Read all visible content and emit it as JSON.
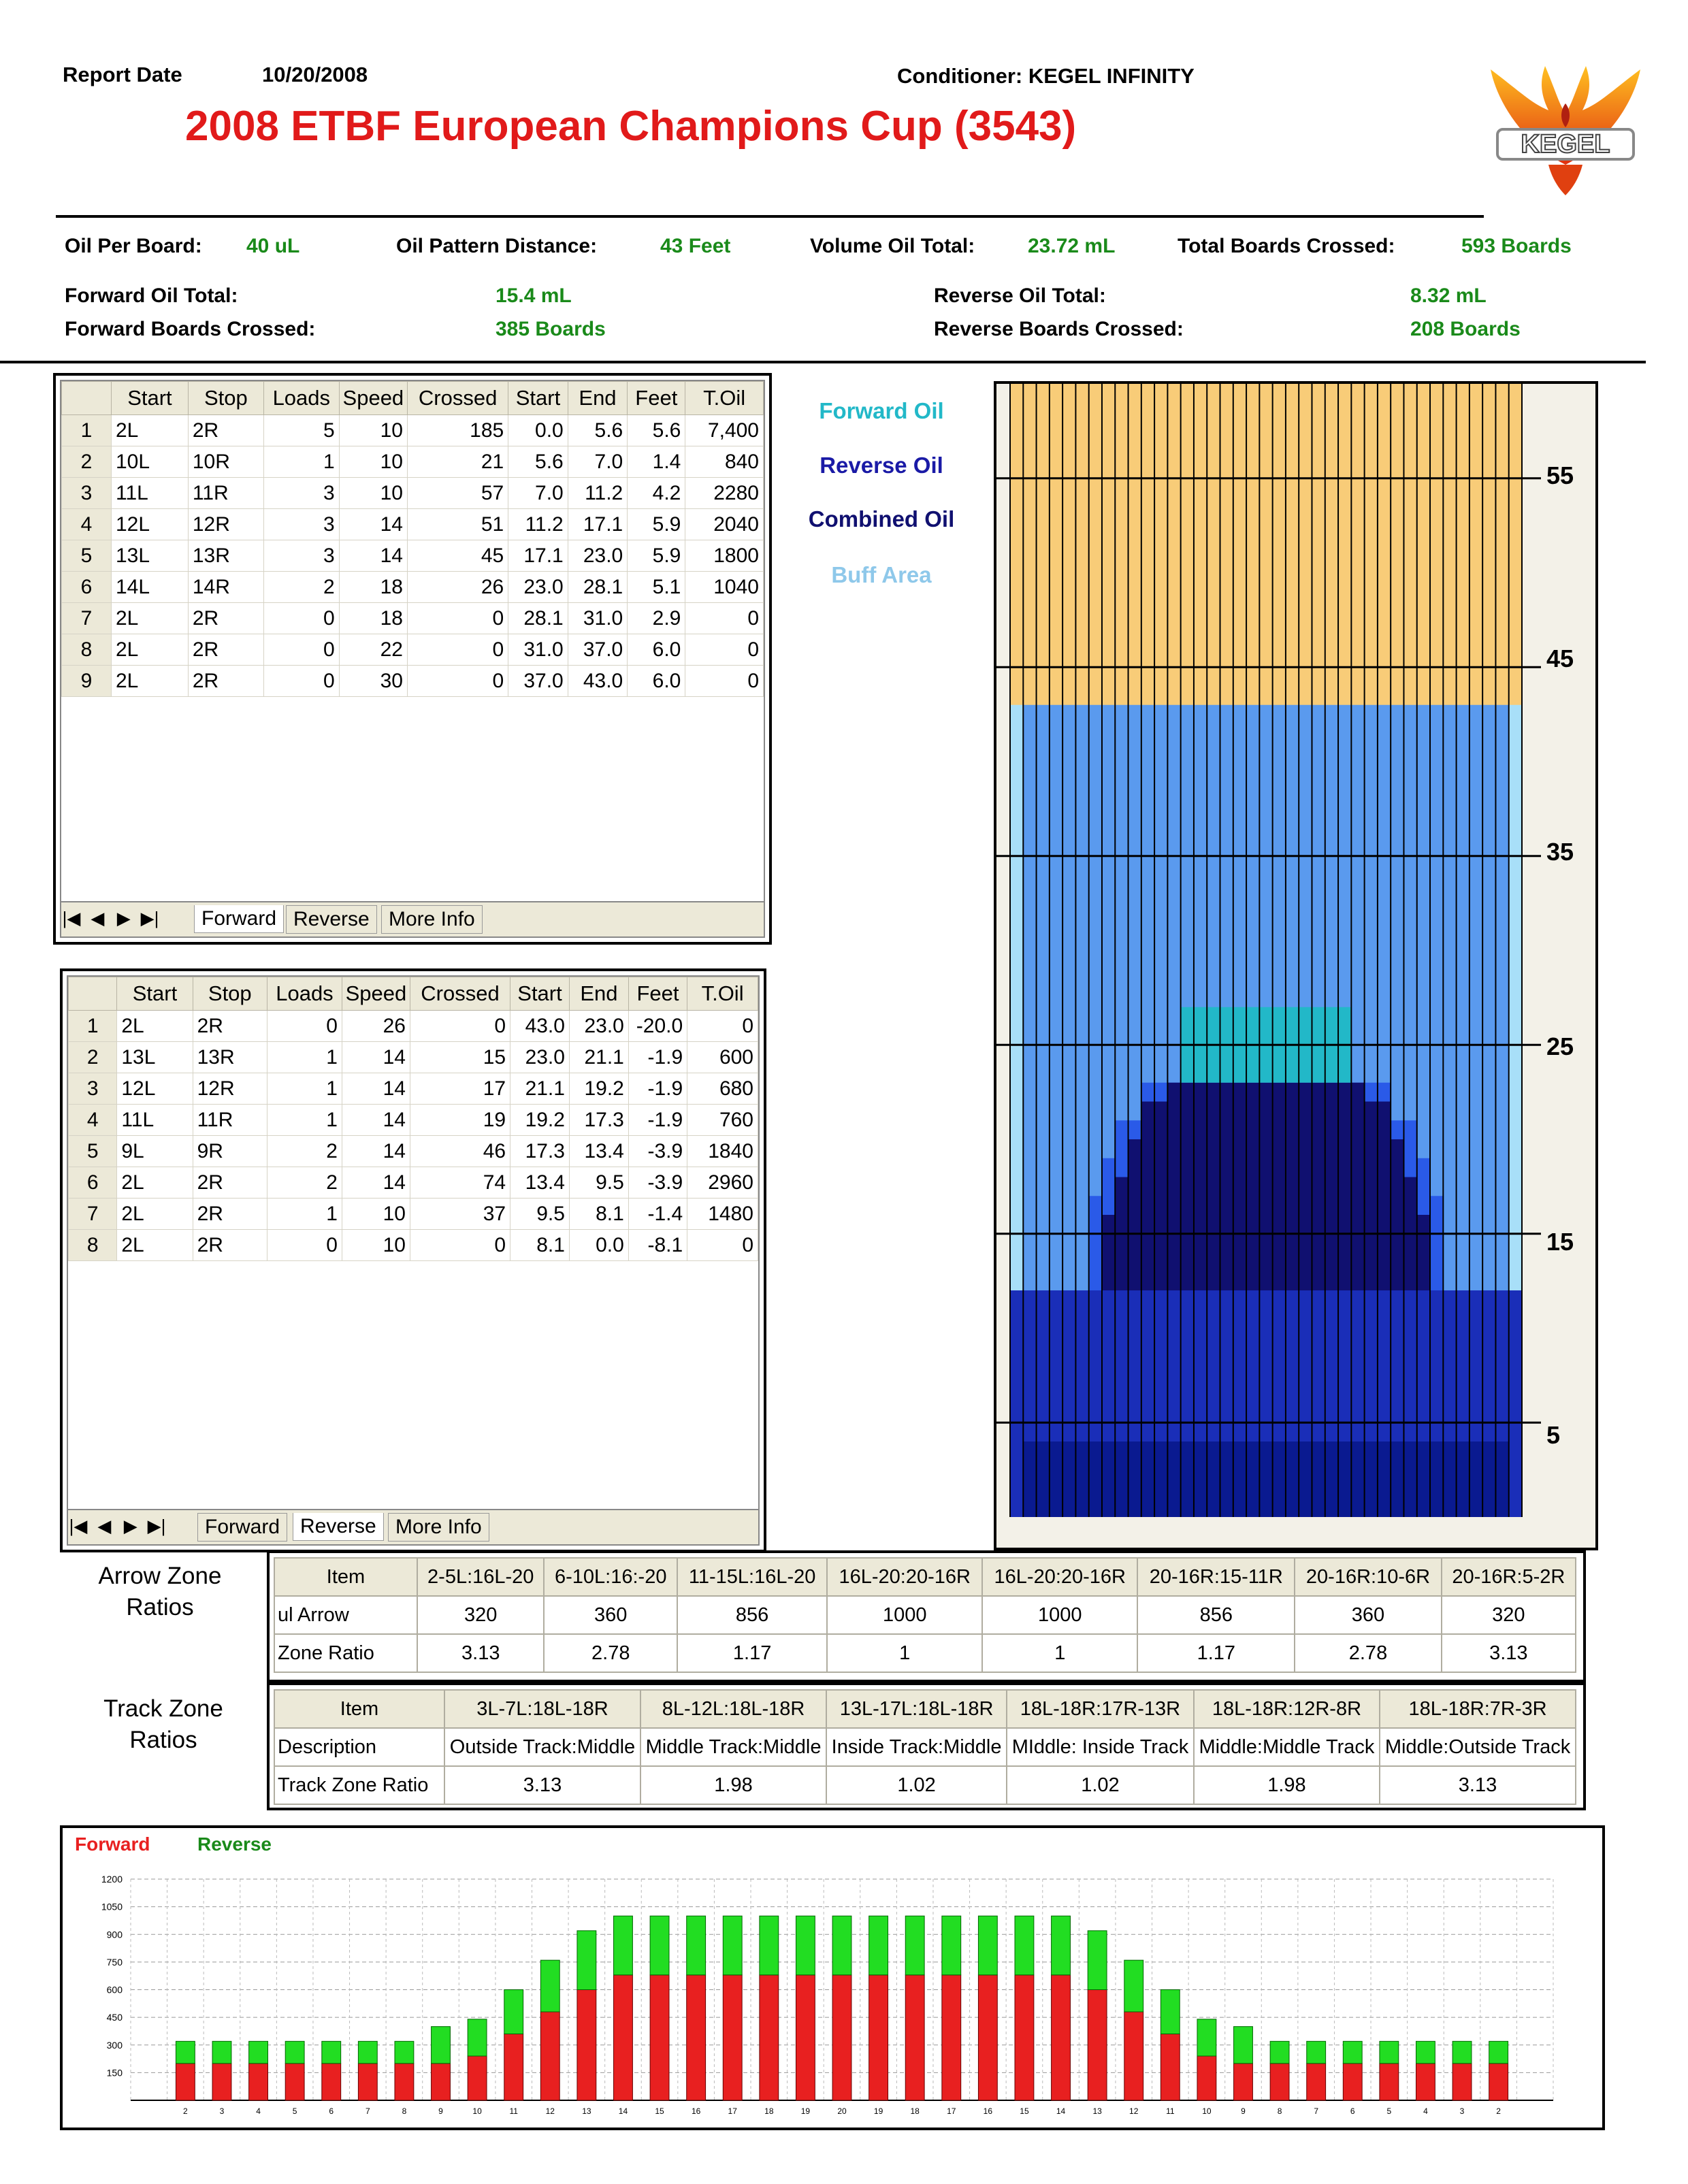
{
  "header": {
    "report_date_label": "Report Date",
    "report_date": "10/20/2008",
    "conditioner": "Conditioner: KEGEL INFINITY",
    "title": "2008 ETBF European Champions Cup (3543)",
    "logo_text": "KEGEL"
  },
  "summary": {
    "oil_per_board_label": "Oil Per Board:",
    "oil_per_board": "40 uL",
    "pattern_distance_label": "Oil Pattern Distance:",
    "pattern_distance": "43 Feet",
    "volume_total_label": "Volume Oil Total:",
    "volume_total": "23.72 mL",
    "boards_crossed_label": "Total Boards Crossed:",
    "boards_crossed": "593 Boards",
    "forward_total_label": "Forward Oil Total:",
    "forward_total": "15.4 mL",
    "reverse_total_label": "Reverse Oil Total:",
    "reverse_total": "8.32 mL",
    "forward_crossed_label": "Forward Boards Crossed:",
    "forward_crossed": "385 Boards",
    "reverse_crossed_label": "Reverse Boards Crossed:",
    "reverse_crossed": "208 Boards"
  },
  "columns": [
    "Start",
    "Stop",
    "Loads",
    "Speed",
    "Crossed",
    "Start",
    "End",
    "Feet",
    "T.Oil"
  ],
  "tabs": [
    "Forward",
    "Reverse",
    "More Info"
  ],
  "forward_rows": [
    [
      "1",
      "2L",
      "2R",
      "5",
      "10",
      "185",
      "0.0",
      "5.6",
      "5.6",
      "7,400"
    ],
    [
      "2",
      "10L",
      "10R",
      "1",
      "10",
      "21",
      "5.6",
      "7.0",
      "1.4",
      "840"
    ],
    [
      "3",
      "11L",
      "11R",
      "3",
      "10",
      "57",
      "7.0",
      "11.2",
      "4.2",
      "2280"
    ],
    [
      "4",
      "12L",
      "12R",
      "3",
      "14",
      "51",
      "11.2",
      "17.1",
      "5.9",
      "2040"
    ],
    [
      "5",
      "13L",
      "13R",
      "3",
      "14",
      "45",
      "17.1",
      "23.0",
      "5.9",
      "1800"
    ],
    [
      "6",
      "14L",
      "14R",
      "2",
      "18",
      "26",
      "23.0",
      "28.1",
      "5.1",
      "1040"
    ],
    [
      "7",
      "2L",
      "2R",
      "0",
      "18",
      "0",
      "28.1",
      "31.0",
      "2.9",
      "0"
    ],
    [
      "8",
      "2L",
      "2R",
      "0",
      "22",
      "0",
      "31.0",
      "37.0",
      "6.0",
      "0"
    ],
    [
      "9",
      "2L",
      "2R",
      "0",
      "30",
      "0",
      "37.0",
      "43.0",
      "6.0",
      "0"
    ]
  ],
  "reverse_rows": [
    [
      "1",
      "2L",
      "2R",
      "0",
      "26",
      "0",
      "43.0",
      "23.0",
      "-20.0",
      "0"
    ],
    [
      "2",
      "13L",
      "13R",
      "1",
      "14",
      "15",
      "23.0",
      "21.1",
      "-1.9",
      "600"
    ],
    [
      "3",
      "12L",
      "12R",
      "1",
      "14",
      "17",
      "21.1",
      "19.2",
      "-1.9",
      "680"
    ],
    [
      "4",
      "11L",
      "11R",
      "1",
      "14",
      "19",
      "19.2",
      "17.3",
      "-1.9",
      "760"
    ],
    [
      "5",
      "9L",
      "9R",
      "2",
      "14",
      "46",
      "17.3",
      "13.4",
      "-3.9",
      "1840"
    ],
    [
      "6",
      "2L",
      "2R",
      "2",
      "14",
      "74",
      "13.4",
      "9.5",
      "-3.9",
      "2960"
    ],
    [
      "7",
      "2L",
      "2R",
      "1",
      "10",
      "37",
      "9.5",
      "8.1",
      "-1.4",
      "1480"
    ],
    [
      "8",
      "2L",
      "2R",
      "0",
      "10",
      "0",
      "8.1",
      "0.0",
      "-8.1",
      "0"
    ]
  ],
  "legend": {
    "forward": "Forward Oil",
    "reverse": "Reverse Oil",
    "combined": "Combined Oil",
    "buff": "Buff Area",
    "colors": {
      "forward": "#22b8c8",
      "reverse": "#1a1aa6",
      "combined": "#101070",
      "buff": "#8ec8ea"
    }
  },
  "lane_axis": [
    "55",
    "45",
    "35",
    "25",
    "15",
    "5"
  ],
  "arrow_zone": {
    "label": "Arrow Zone Ratios",
    "headers": [
      "Item",
      "2-5L:16L-20",
      "6-10L:16:-20",
      "11-15L:16L-20",
      "16L-20:20-16R",
      "16L-20:20-16R",
      "20-16R:15-11R",
      "20-16R:10-6R",
      "20-16R:5-2R"
    ],
    "rows": [
      [
        "ul Arrow",
        "320",
        "360",
        "856",
        "1000",
        "1000",
        "856",
        "360",
        "320"
      ],
      [
        "Zone Ratio",
        "3.13",
        "2.78",
        "1.17",
        "1",
        "1",
        "1.17",
        "2.78",
        "3.13"
      ]
    ]
  },
  "track_zone": {
    "label": "Track Zone Ratios",
    "headers": [
      "Item",
      "3L-7L:18L-18R",
      "8L-12L:18L-18R",
      "13L-17L:18L-18R",
      "18L-18R:17R-13R",
      "18L-18R:12R-8R",
      "18L-18R:7R-3R"
    ],
    "rows": [
      [
        "Description",
        "Outside Track:Middle",
        "Middle Track:Middle",
        "Inside Track:Middle",
        "MIddle: Inside Track",
        "Middle:Middle Track",
        "Middle:Outside Track"
      ],
      [
        "Track Zone Ratio",
        "3.13",
        "1.98",
        "1.02",
        "1.02",
        "1.98",
        "3.13"
      ]
    ]
  },
  "chart_data": {
    "type": "bar",
    "title": "",
    "legend": [
      "Forward",
      "Reverse"
    ],
    "colors": {
      "Forward": "#e82020",
      "Reverse": "#22dd22"
    },
    "ylim": [
      0,
      1200
    ],
    "yticks": [
      "150",
      "300",
      "450",
      "600",
      "750",
      "900",
      "1050",
      "1200"
    ],
    "categories": [
      "2",
      "3",
      "4",
      "5",
      "6",
      "7",
      "8",
      "9",
      "10",
      "11",
      "12",
      "13",
      "14",
      "15",
      "16",
      "17",
      "18",
      "19",
      "20",
      "19",
      "18",
      "17",
      "16",
      "15",
      "14",
      "13",
      "12",
      "11",
      "10",
      "9",
      "8",
      "7",
      "6",
      "5",
      "4",
      "3",
      "2"
    ],
    "series": [
      {
        "name": "Forward",
        "values": [
          200,
          200,
          200,
          200,
          200,
          200,
          200,
          200,
          240,
          360,
          480,
          600,
          680,
          680,
          680,
          680,
          680,
          680,
          680,
          680,
          680,
          680,
          680,
          680,
          680,
          600,
          480,
          360,
          240,
          200,
          200,
          200,
          200,
          200,
          200,
          200,
          200
        ]
      },
      {
        "name": "Reverse",
        "values": [
          120,
          120,
          120,
          120,
          120,
          120,
          120,
          200,
          200,
          240,
          280,
          320,
          320,
          320,
          320,
          320,
          320,
          320,
          320,
          320,
          320,
          320,
          320,
          320,
          320,
          320,
          280,
          240,
          200,
          200,
          120,
          120,
          120,
          120,
          120,
          120,
          120
        ]
      }
    ]
  }
}
